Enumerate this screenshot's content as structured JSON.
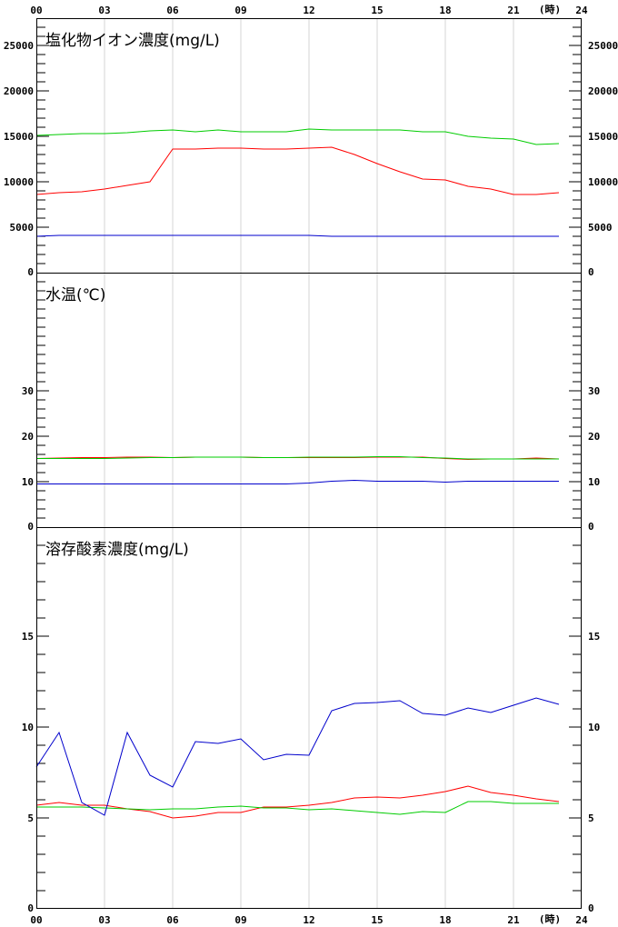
{
  "hour_unit": "(時)",
  "x_ticks": [
    "00",
    "03",
    "06",
    "09",
    "12",
    "15",
    "18",
    "21",
    "24"
  ],
  "series_colors": [
    "#ff0000",
    "#00cc00",
    "#0000cc"
  ],
  "chart_data": [
    {
      "type": "line",
      "title": "塩化物イオン濃度(mg/L)",
      "xlim": [
        0,
        24
      ],
      "ylim": [
        0,
        28000
      ],
      "y_ticks": [
        0,
        5000,
        10000,
        15000,
        20000,
        25000
      ],
      "y_minor_step": 1000,
      "grid_x": true,
      "series": [
        {
          "color": "#ff0000",
          "x": [
            0,
            1,
            2,
            3,
            4,
            5,
            6,
            7,
            8,
            9,
            10,
            11,
            12,
            13,
            14,
            15,
            16,
            17,
            18,
            19,
            20,
            21,
            22,
            23
          ],
          "values": [
            8600,
            8800,
            8900,
            9200,
            9600,
            10000,
            13600,
            13600,
            13700,
            13700,
            13600,
            13600,
            13700,
            13800,
            13000,
            12000,
            11100,
            10300,
            10200,
            9500,
            9200,
            8600,
            8600,
            8800
          ]
        },
        {
          "color": "#00cc00",
          "x": [
            0,
            1,
            2,
            3,
            4,
            5,
            6,
            7,
            8,
            9,
            10,
            11,
            12,
            13,
            14,
            15,
            16,
            17,
            18,
            19,
            20,
            21,
            22,
            23
          ],
          "values": [
            15100,
            15200,
            15300,
            15300,
            15400,
            15600,
            15700,
            15500,
            15700,
            15500,
            15500,
            15500,
            15800,
            15700,
            15700,
            15700,
            15700,
            15500,
            15500,
            15000,
            14800,
            14700,
            14100,
            14200
          ]
        },
        {
          "color": "#0000cc",
          "x": [
            0,
            1,
            2,
            3,
            4,
            5,
            6,
            7,
            8,
            9,
            10,
            11,
            12,
            13,
            14,
            15,
            16,
            17,
            18,
            19,
            20,
            21,
            22,
            23
          ],
          "values": [
            4000,
            4100,
            4100,
            4100,
            4100,
            4100,
            4100,
            4100,
            4100,
            4100,
            4100,
            4100,
            4100,
            4000,
            4000,
            4000,
            4000,
            4000,
            4000,
            4000,
            4000,
            4000,
            4000,
            4000
          ]
        }
      ]
    },
    {
      "type": "line",
      "title": "水温(℃)",
      "xlim": [
        0,
        24
      ],
      "ylim": [
        0,
        56
      ],
      "y_ticks": [
        0,
        10,
        20,
        30
      ],
      "y_minor_step": 2,
      "grid_x": true,
      "series": [
        {
          "color": "#ff0000",
          "x": [
            0,
            1,
            2,
            3,
            4,
            5,
            6,
            7,
            8,
            9,
            10,
            11,
            12,
            13,
            14,
            15,
            16,
            17,
            18,
            19,
            20,
            21,
            22,
            23
          ],
          "values": [
            15.1,
            15.2,
            15.3,
            15.3,
            15.4,
            15.4,
            15.3,
            15.4,
            15.4,
            15.4,
            15.3,
            15.3,
            15.3,
            15.3,
            15.3,
            15.4,
            15.4,
            15.4,
            15.1,
            14.9,
            15.0,
            15.0,
            15.2,
            15.0
          ]
        },
        {
          "color": "#00cc00",
          "x": [
            0,
            1,
            2,
            3,
            4,
            5,
            6,
            7,
            8,
            9,
            10,
            11,
            12,
            13,
            14,
            15,
            16,
            17,
            18,
            19,
            20,
            21,
            22,
            23
          ],
          "values": [
            15.1,
            15.1,
            15.1,
            15.1,
            15.2,
            15.3,
            15.3,
            15.4,
            15.4,
            15.4,
            15.3,
            15.3,
            15.4,
            15.4,
            15.4,
            15.5,
            15.5,
            15.3,
            15.2,
            15.0,
            15.0,
            15.0,
            15.0,
            15.0
          ]
        },
        {
          "color": "#0000cc",
          "x": [
            0,
            1,
            2,
            3,
            4,
            5,
            6,
            7,
            8,
            9,
            10,
            11,
            12,
            13,
            14,
            15,
            16,
            17,
            18,
            19,
            20,
            21,
            22,
            23
          ],
          "values": [
            9.5,
            9.5,
            9.5,
            9.5,
            9.5,
            9.5,
            9.5,
            9.5,
            9.5,
            9.5,
            9.5,
            9.5,
            9.7,
            10.1,
            10.3,
            10.1,
            10.1,
            10.1,
            9.9,
            10.1,
            10.1,
            10.1,
            10.1,
            10.1
          ]
        }
      ]
    },
    {
      "type": "line",
      "title": "溶存酸素濃度(mg/L)",
      "xlim": [
        0,
        24
      ],
      "ylim": [
        0,
        21
      ],
      "y_ticks": [
        0,
        5,
        10,
        15
      ],
      "y_minor_step": 1,
      "grid_x": true,
      "series": [
        {
          "color": "#ff0000",
          "x": [
            0,
            1,
            2,
            3,
            4,
            5,
            6,
            7,
            8,
            9,
            10,
            11,
            12,
            13,
            14,
            15,
            16,
            17,
            18,
            19,
            20,
            21,
            22,
            23
          ],
          "values": [
            5.7,
            5.85,
            5.7,
            5.7,
            5.5,
            5.35,
            5.0,
            5.1,
            5.3,
            5.3,
            5.6,
            5.6,
            5.7,
            5.85,
            6.1,
            6.15,
            6.1,
            6.25,
            6.45,
            6.75,
            6.4,
            6.25,
            6.05,
            5.9
          ]
        },
        {
          "color": "#00cc00",
          "x": [
            0,
            1,
            2,
            3,
            4,
            5,
            6,
            7,
            8,
            9,
            10,
            11,
            12,
            13,
            14,
            15,
            16,
            17,
            18,
            19,
            20,
            21,
            22,
            23
          ],
          "values": [
            5.6,
            5.6,
            5.6,
            5.55,
            5.5,
            5.45,
            5.5,
            5.5,
            5.6,
            5.65,
            5.55,
            5.55,
            5.45,
            5.5,
            5.4,
            5.3,
            5.2,
            5.35,
            5.3,
            5.9,
            5.9,
            5.8,
            5.8,
            5.8
          ]
        },
        {
          "color": "#0000cc",
          "x": [
            0,
            1,
            2,
            3,
            4,
            5,
            6,
            7,
            8,
            9,
            10,
            11,
            12,
            13,
            14,
            15,
            16,
            17,
            18,
            19,
            20,
            21,
            22,
            23
          ],
          "values": [
            7.8,
            9.7,
            5.85,
            5.15,
            9.7,
            7.35,
            6.7,
            9.2,
            9.1,
            9.35,
            8.2,
            8.5,
            8.45,
            10.9,
            11.3,
            11.35,
            11.45,
            10.75,
            10.65,
            11.05,
            10.8,
            11.2,
            11.6,
            11.25
          ]
        }
      ]
    }
  ]
}
